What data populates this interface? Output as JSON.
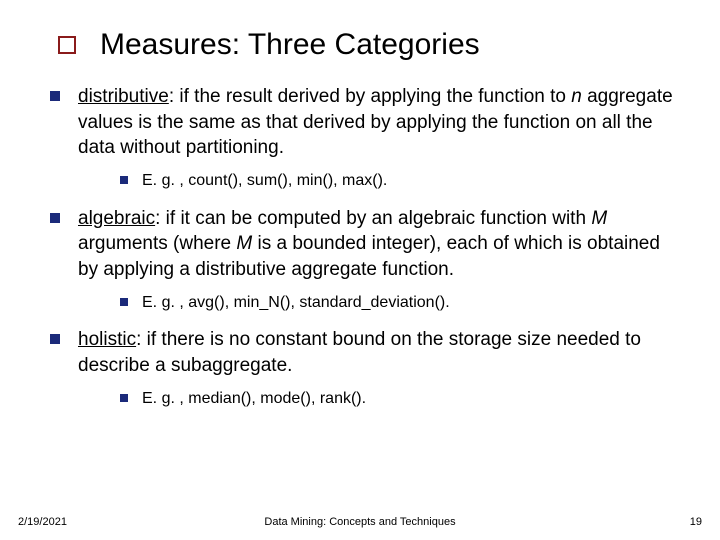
{
  "title": "Measures: Three Categories",
  "title_block_color": "#8a1b1b",
  "bullet_color_l1": "#1b2a7a",
  "bullet_color_l2": "#1b2a7a",
  "items": [
    {
      "term": "distributive",
      "body_before": ": if the result derived by applying the function to ",
      "italic": "n",
      "body_after": " aggregate values is the same as that derived by applying the function on all the data without partitioning.",
      "example": "E. g. , count(), sum(), min(), max()."
    },
    {
      "term": "algebraic",
      "body_before": ": if it can be computed by an algebraic function with ",
      "italic": "M",
      "body_mid": " arguments (where ",
      "italic2": "M",
      "body_after": " is a bounded integer), each of which is obtained by applying a distributive aggregate function.",
      "example": "E. g. ,  avg(), min_N(), standard_deviation()."
    },
    {
      "term": "holistic",
      "body_before": ": if there is no constant bound on the storage size needed to describe a subaggregate.",
      "example": "E. g. , median(), mode(), rank()."
    }
  ],
  "footer": {
    "date": "2/19/2021",
    "center": "Data Mining: Concepts and Techniques",
    "page": "19"
  },
  "background_color": "#ffffff",
  "text_color": "#000000",
  "title_fontsize": 30,
  "body_fontsize": 19,
  "sub_fontsize": 16,
  "footer_fontsize": 11
}
